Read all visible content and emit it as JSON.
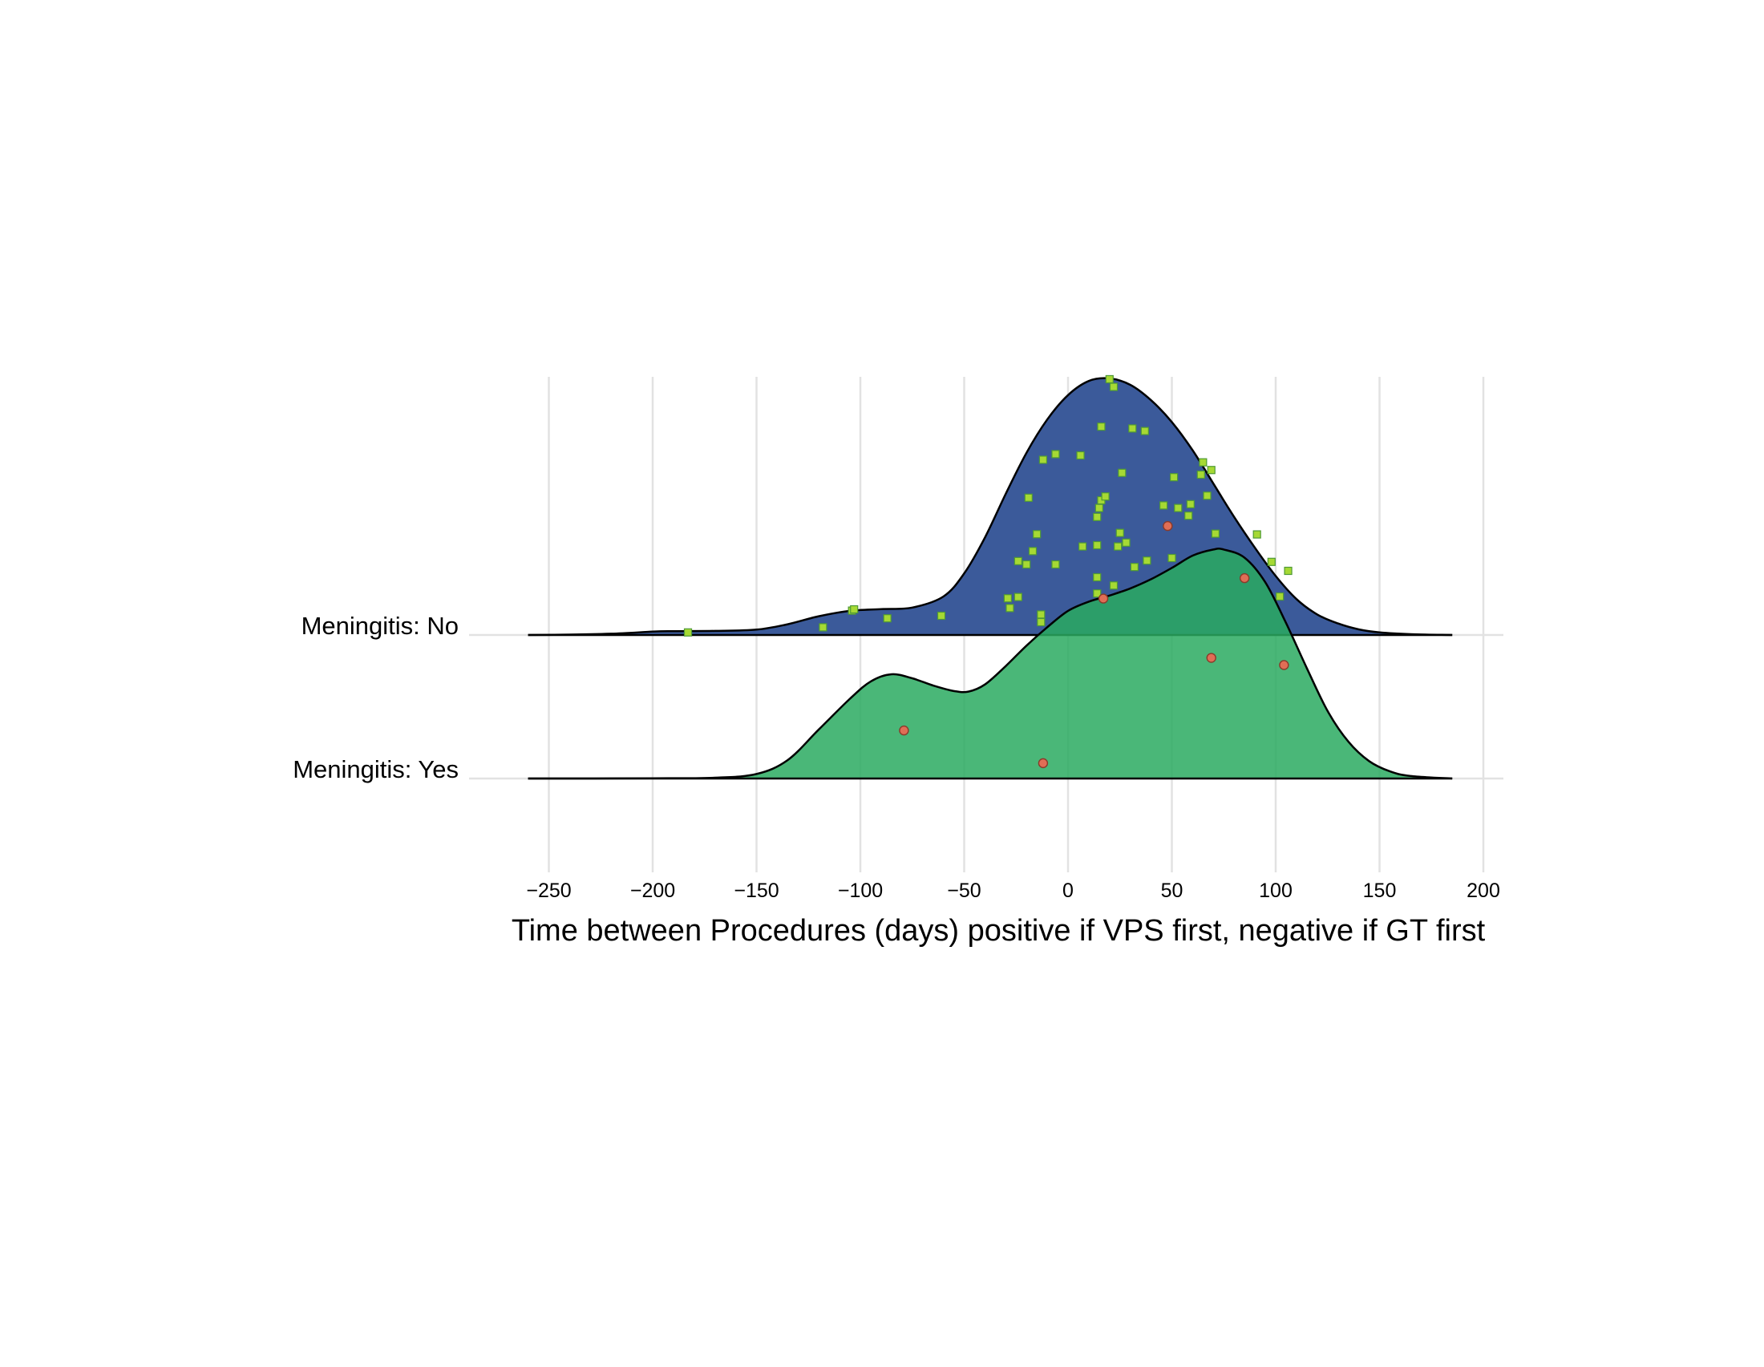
{
  "chart_data": {
    "type": "ridgeline",
    "xlabel": "Time between Procedures (days) positive if VPS first, negative if GT first",
    "ylabel": "",
    "xlim": [
      -265,
      200
    ],
    "x_ticks": [
      -250,
      -200,
      -150,
      -100,
      -50,
      0,
      50,
      100,
      150,
      200
    ],
    "x_tick_labels": [
      "−250",
      "−200",
      "−150",
      "−100",
      "−50",
      "0",
      "50",
      "100",
      "150",
      "200"
    ],
    "grid": "vertical major",
    "density_range": [
      -260,
      185
    ],
    "series": [
      {
        "name": "Meningitis: No",
        "fill": "#3b5a9a",
        "point_color": "#a6d934",
        "point_shape": "square",
        "density": [
          [
            -260,
            0
          ],
          [
            -240,
            0.0015
          ],
          [
            -220,
            0.005
          ],
          [
            -200,
            0.013
          ],
          [
            -190,
            0.015
          ],
          [
            -170,
            0.016
          ],
          [
            -150,
            0.021
          ],
          [
            -135,
            0.042
          ],
          [
            -120,
            0.073
          ],
          [
            -105,
            0.094
          ],
          [
            -90,
            0.101
          ],
          [
            -75,
            0.107
          ],
          [
            -60,
            0.15
          ],
          [
            -50,
            0.24
          ],
          [
            -40,
            0.38
          ],
          [
            -30,
            0.55
          ],
          [
            -20,
            0.71
          ],
          [
            -10,
            0.84
          ],
          [
            0,
            0.935
          ],
          [
            10,
            0.99
          ],
          [
            20,
            1.0
          ],
          [
            30,
            0.975
          ],
          [
            40,
            0.915
          ],
          [
            50,
            0.83
          ],
          [
            60,
            0.72
          ],
          [
            70,
            0.59
          ],
          [
            80,
            0.46
          ],
          [
            90,
            0.34
          ],
          [
            100,
            0.23
          ],
          [
            110,
            0.14
          ],
          [
            120,
            0.08
          ],
          [
            130,
            0.045
          ],
          [
            140,
            0.022
          ],
          [
            150,
            0.01
          ],
          [
            165,
            0.003
          ],
          [
            185,
            0
          ]
        ],
        "points": [
          [
            -183,
            0.01
          ],
          [
            -118,
            0.03
          ],
          [
            -104,
            0.095
          ],
          [
            -103,
            0.1
          ],
          [
            -87,
            0.065
          ],
          [
            -61,
            0.075
          ],
          [
            -29,
            0.143
          ],
          [
            -28,
            0.105
          ],
          [
            -24,
            0.148
          ],
          [
            -24,
            0.288
          ],
          [
            -20,
            0.275
          ],
          [
            -19,
            0.535
          ],
          [
            -17,
            0.327
          ],
          [
            -15,
            0.393
          ],
          [
            -13,
            0.08
          ],
          [
            -13,
            0.05
          ],
          [
            -12,
            0.683
          ],
          [
            -6,
            0.705
          ],
          [
            -6,
            0.275
          ],
          [
            6,
            0.7
          ],
          [
            7,
            0.345
          ],
          [
            14,
            0.35
          ],
          [
            14,
            0.162
          ],
          [
            14,
            0.225
          ],
          [
            14,
            0.46
          ],
          [
            15,
            0.495
          ],
          [
            16,
            0.525
          ],
          [
            16,
            0.812
          ],
          [
            18,
            0.54
          ],
          [
            20,
            0.997
          ],
          [
            22,
            0.967
          ],
          [
            22,
            0.193
          ],
          [
            24,
            0.345
          ],
          [
            25,
            0.398
          ],
          [
            26,
            0.632
          ],
          [
            28,
            0.36
          ],
          [
            31,
            0.805
          ],
          [
            32,
            0.265
          ],
          [
            37,
            0.795
          ],
          [
            38,
            0.29
          ],
          [
            46,
            0.505
          ],
          [
            50,
            0.3
          ],
          [
            51,
            0.615
          ],
          [
            53,
            0.495
          ],
          [
            58,
            0.465
          ],
          [
            59,
            0.51
          ],
          [
            64,
            0.625
          ],
          [
            65,
            0.673
          ],
          [
            67,
            0.543
          ],
          [
            69,
            0.643
          ],
          [
            71,
            0.395
          ],
          [
            91,
            0.392
          ],
          [
            98,
            0.285
          ],
          [
            102,
            0.15
          ],
          [
            106,
            0.25
          ]
        ]
      },
      {
        "name": "Meningitis: Yes",
        "fill": "#2aaa60",
        "point_color": "#e06e56",
        "point_shape": "circle",
        "density": [
          [
            -260,
            0
          ],
          [
            -230,
            0
          ],
          [
            -200,
            0.001
          ],
          [
            -170,
            0.004
          ],
          [
            -150,
            0.022
          ],
          [
            -135,
            0.09
          ],
          [
            -120,
            0.24
          ],
          [
            -105,
            0.39
          ],
          [
            -95,
            0.475
          ],
          [
            -85,
            0.51
          ],
          [
            -75,
            0.49
          ],
          [
            -65,
            0.455
          ],
          [
            -55,
            0.428
          ],
          [
            -48,
            0.425
          ],
          [
            -40,
            0.46
          ],
          [
            -30,
            0.55
          ],
          [
            -20,
            0.65
          ],
          [
            -10,
            0.74
          ],
          [
            0,
            0.82
          ],
          [
            10,
            0.865
          ],
          [
            20,
            0.895
          ],
          [
            30,
            0.93
          ],
          [
            40,
            0.975
          ],
          [
            50,
            1.03
          ],
          [
            60,
            1.09
          ],
          [
            70,
            1.12
          ],
          [
            75,
            1.12
          ],
          [
            85,
            1.08
          ],
          [
            95,
            0.96
          ],
          [
            105,
            0.76
          ],
          [
            115,
            0.54
          ],
          [
            125,
            0.33
          ],
          [
            135,
            0.18
          ],
          [
            145,
            0.085
          ],
          [
            155,
            0.035
          ],
          [
            165,
            0.012
          ],
          [
            185,
            0
          ]
        ],
        "points": [
          [
            -79,
            0.235
          ],
          [
            -12,
            0.075
          ],
          [
            17,
            0.88
          ],
          [
            48,
            1.235
          ],
          [
            69,
            0.59
          ],
          [
            85,
            0.98
          ],
          [
            104,
            0.555
          ]
        ]
      }
    ]
  }
}
